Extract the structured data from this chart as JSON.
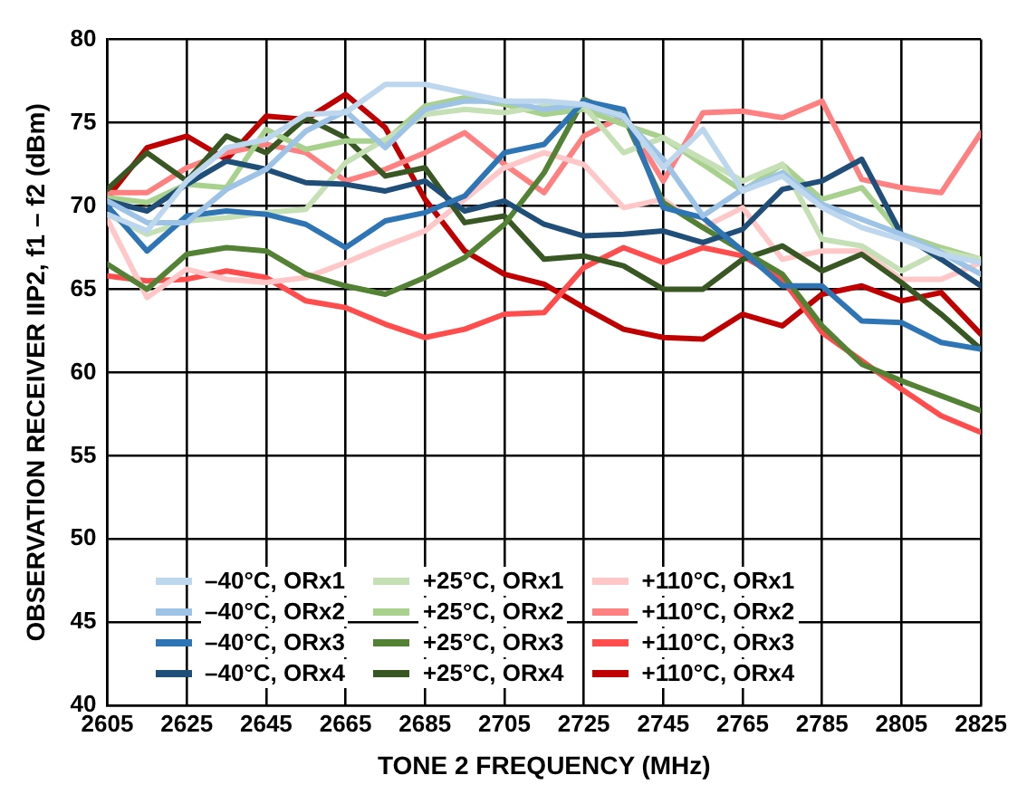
{
  "chart_data": {
    "type": "line",
    "xlabel": "TONE 2 FREQUENCY (MHz)",
    "ylabel": "OBSERVATION RECEIVER IIP2, f1 – f2 (dBm)",
    "x": [
      2605,
      2615,
      2625,
      2635,
      2645,
      2655,
      2665,
      2675,
      2685,
      2695,
      2705,
      2715,
      2725,
      2735,
      2745,
      2755,
      2765,
      2775,
      2785,
      2795,
      2805,
      2815,
      2825
    ],
    "xlim": [
      2605,
      2825
    ],
    "xticks": [
      2605,
      2625,
      2645,
      2665,
      2685,
      2705,
      2725,
      2745,
      2765,
      2785,
      2805,
      2825
    ],
    "ylim": [
      40,
      80
    ],
    "yticks": [
      40,
      45,
      50,
      55,
      60,
      65,
      70,
      75,
      80
    ],
    "grid": true,
    "legend": "bottom left",
    "marker": "none",
    "line_style": "solid",
    "series": [
      {
        "name": "–40°C, ORx1",
        "color": "#bdd7ee",
        "values": [
          69.5,
          68.5,
          71.5,
          73.5,
          74,
          75.5,
          75.6,
          77.3,
          77.3,
          76.8,
          76.3,
          76.3,
          76.1,
          75.4,
          72.3,
          74.6,
          70.9,
          71.8,
          69.9,
          68.7,
          68,
          67.1,
          66.6
        ]
      },
      {
        "name": "–40°C, ORx2",
        "color": "#9dc3e6",
        "values": [
          70.3,
          69,
          69,
          71,
          72.2,
          74.5,
          75.7,
          73.5,
          75.8,
          76.3,
          76.3,
          75.8,
          76.1,
          75.3,
          72.8,
          69.4,
          71,
          72,
          70.1,
          69.2,
          68.3,
          67.2,
          65.9
        ]
      },
      {
        "name": "–40°C, ORx3",
        "color": "#2e75b6",
        "values": [
          70,
          67.3,
          69.4,
          69.7,
          69.5,
          68.9,
          67.5,
          69.1,
          69.6,
          70.6,
          73.2,
          73.7,
          76.3,
          75.8,
          69.9,
          69.3,
          67.3,
          65.2,
          65.2,
          63.1,
          63,
          61.8,
          61.4
        ]
      },
      {
        "name": "–40°C, ORx4",
        "color": "#1f4e79",
        "values": [
          70.3,
          69.7,
          71.3,
          72.7,
          72.2,
          71.4,
          71.3,
          70.9,
          71.5,
          69.7,
          70.3,
          68.9,
          68.2,
          68.3,
          68.5,
          67.8,
          68.6,
          71,
          71.5,
          72.8,
          68.3,
          66.8,
          65.2
        ]
      },
      {
        "name": "+25°C, ORx1",
        "color": "#c5e0b4",
        "values": [
          69.5,
          68.3,
          69.1,
          69.3,
          69.6,
          69.8,
          72.6,
          74,
          75.5,
          75.8,
          75.6,
          76,
          76,
          73.2,
          74.1,
          72.8,
          71.5,
          72.5,
          68,
          67.6,
          66.1,
          67.3,
          66.8
        ]
      },
      {
        "name": "+25°C, ORx2",
        "color": "#a9d18e",
        "values": [
          70.5,
          70.2,
          71.3,
          71.1,
          74.6,
          73.4,
          73.9,
          73.9,
          76,
          76.5,
          76.1,
          75.5,
          75.8,
          74.9,
          74.1,
          72.5,
          70.9,
          72.5,
          70.4,
          71.1,
          68.3,
          67.5,
          66.8
        ]
      },
      {
        "name": "+25°C, ORx3",
        "color": "#548235",
        "values": [
          66.5,
          65,
          67.1,
          67.5,
          67.3,
          65.9,
          65.2,
          64.7,
          65.7,
          66.9,
          68.9,
          72,
          76.4,
          75.4,
          70.2,
          68.7,
          67.3,
          65.9,
          62.8,
          60.5,
          59.5,
          58.6,
          57.7
        ]
      },
      {
        "name": "+25°C, ORx4",
        "color": "#385723",
        "values": [
          71,
          73.2,
          71.5,
          74.2,
          73.2,
          75.3,
          74.1,
          71.8,
          72.3,
          69,
          69.4,
          66.8,
          67,
          66.4,
          65,
          65,
          66.8,
          67.6,
          66.1,
          67.1,
          65.4,
          63.5,
          61.4
        ]
      },
      {
        "name": "+110°C, ORx1",
        "color": "#ffc7c7",
        "values": [
          69.2,
          64.5,
          66.2,
          65.6,
          65.4,
          65.7,
          66.6,
          67.6,
          68.5,
          70.4,
          72.3,
          73.2,
          72.5,
          69.9,
          70.4,
          68.7,
          69.9,
          66.8,
          67.3,
          67.3,
          65.6,
          65.6,
          66.6
        ]
      },
      {
        "name": "+110°C, ORx2",
        "color": "#ff8080",
        "values": [
          70.8,
          70.8,
          72.3,
          73.2,
          73.7,
          73.2,
          71.5,
          72.2,
          73.2,
          74.4,
          72.5,
          70.8,
          74.2,
          75.4,
          71.5,
          75.6,
          75.7,
          75.3,
          76.3,
          71.6,
          71.1,
          70.8,
          74.4
        ]
      },
      {
        "name": "+110°C, ORx3",
        "color": "#ff4d4d",
        "values": [
          65.8,
          65.5,
          65.6,
          66.1,
          65.7,
          64.3,
          63.9,
          62.9,
          62.1,
          62.6,
          63.5,
          63.6,
          66.3,
          67.5,
          66.6,
          67.5,
          67,
          65.6,
          62.4,
          60.7,
          59,
          57.4,
          56.4
        ]
      },
      {
        "name": "+110°C, ORx4",
        "color": "#c00000",
        "values": [
          70.5,
          73.5,
          74.2,
          72.8,
          75.4,
          75.2,
          76.7,
          74.7,
          70.4,
          67.3,
          65.9,
          65.3,
          63.9,
          62.6,
          62.1,
          62,
          63.5,
          62.8,
          64.7,
          65.2,
          64.3,
          64.8,
          62.3
        ]
      }
    ]
  }
}
